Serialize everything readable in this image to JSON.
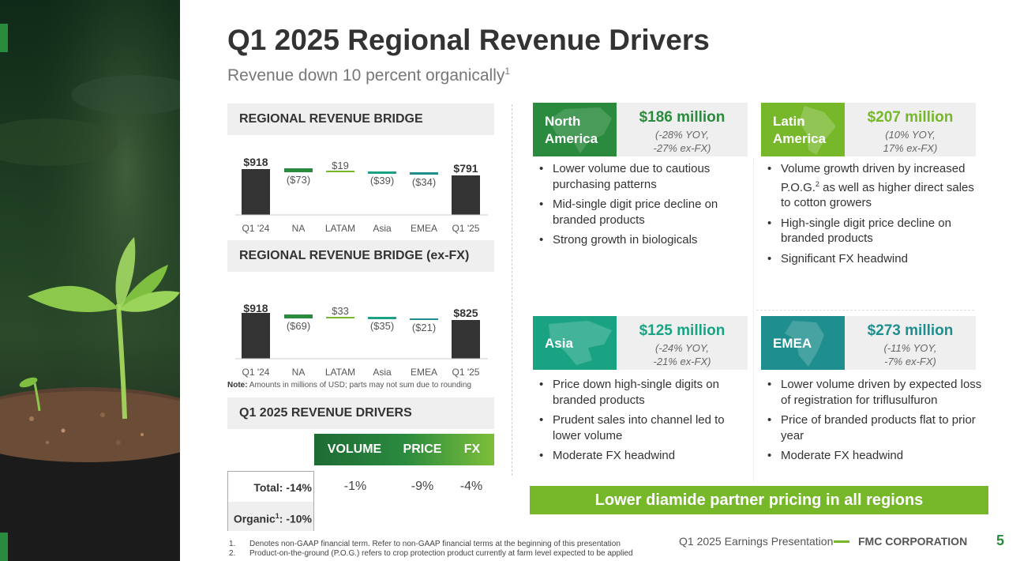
{
  "title": "Q1 2025 Regional Revenue Drivers",
  "subtitle": "Revenue down 10 percent organically",
  "subtitle_sup": "1",
  "bridge1": {
    "heading": "REGIONAL REVENUE BRIDGE",
    "categories": [
      "Q1 '24",
      "NA",
      "LATAM",
      "Asia",
      "EMEA",
      "Q1 '25"
    ],
    "labels": [
      "$918",
      "($73)",
      "$19",
      "($39)",
      "($34)",
      "$791"
    ]
  },
  "bridge2": {
    "heading": "REGIONAL REVENUE BRIDGE (ex-FX)",
    "categories": [
      "Q1 '24",
      "NA",
      "LATAM",
      "Asia",
      "EMEA",
      "Q1 '25"
    ],
    "labels": [
      "$918",
      "($69)",
      "$33",
      "($35)",
      "($21)",
      "$825"
    ]
  },
  "note": {
    "bold": "Note:",
    "text": " Amounts in millions of USD; parts may not sum due to rounding"
  },
  "drivers": {
    "heading": "Q1 2025 REVENUE DRIVERS",
    "columns": [
      "VOLUME",
      "PRICE",
      "FX"
    ],
    "total_label": "Total: -14%",
    "organic_label": "Organic",
    "organic_sup": "1",
    "organic_value": ": -10%",
    "values": [
      "-1%",
      "-9%",
      "-4%"
    ]
  },
  "regions": [
    {
      "name_line1": "North",
      "name_line2": "America",
      "amount": "$186 million",
      "sub_line1": "(-28% YOY,",
      "sub_line2": "-27% ex-FX)",
      "bullets": [
        "Lower volume due to cautious purchasing patterns",
        "Mid-single digit price decline on branded products",
        "Strong growth in biologicals"
      ]
    },
    {
      "name_line1": "Latin",
      "name_line2": "America",
      "amount": "$207 million",
      "sub_line1": "(10% YOY,",
      "sub_line2": "17% ex-FX)",
      "bullets": [
        "Volume growth driven by increased P.O.G.",
        "as well as higher direct sales to cotton growers",
        "High-single digit price decline on branded products",
        "Significant FX headwind"
      ],
      "bullet1_sup": "2"
    },
    {
      "name_line1": "Asia",
      "name_line2": "",
      "amount": "$125 million",
      "sub_line1": "(-24% YOY,",
      "sub_line2": "-21% ex-FX)",
      "bullets": [
        "Price down high-single digits on branded products",
        "Prudent sales into channel led to lower volume",
        "Moderate FX headwind"
      ]
    },
    {
      "name_line1": "EMEA",
      "name_line2": "",
      "amount": "$273 million",
      "sub_line1": "(-11% YOY,",
      "sub_line2": "-7% ex-FX)",
      "bullets": [
        "Lower volume driven by expected loss of registration for triflusulfuron",
        "Price of branded products flat to prior year",
        "Moderate FX headwind"
      ]
    }
  ],
  "banner": "Lower diamide partner pricing in all regions",
  "footnotes": [
    {
      "num": "1.",
      "text": "Denotes non-GAAP financial term. Refer to non-GAAP financial terms at the beginning of this presentation"
    },
    {
      "num": "2.",
      "text": "Product-on-the-ground (P.O.G.) refers to crop protection product currently at farm level expected to be applied"
    }
  ],
  "footer": {
    "presentation": "Q1 2025 Earnings Presentation",
    "company": "FMC CORPORATION",
    "page": "5"
  },
  "colors": {
    "green_dark": "#2a8a3e",
    "green_light": "#76b82a",
    "teal": "#1aa383",
    "teal_dark": "#1f8e8e",
    "bar_dark": "#333333"
  }
}
